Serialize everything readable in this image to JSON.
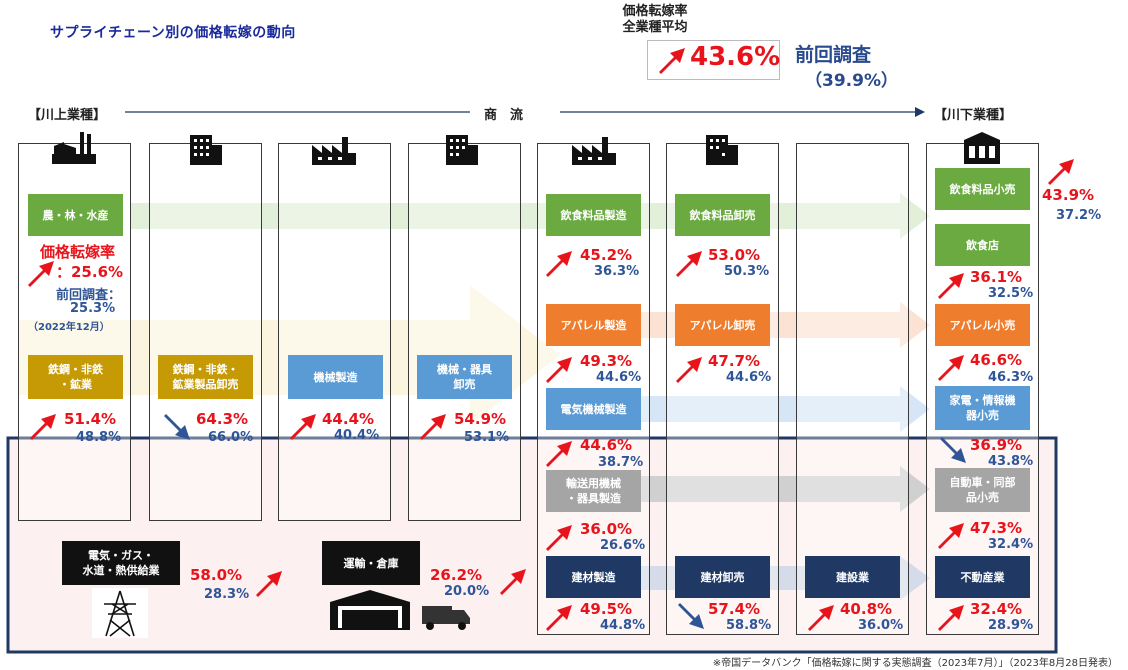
{
  "title": "サプライチェーン別の価格転嫁の動向",
  "header": {
    "label_line1": "価格転嫁率",
    "label_line2": "全業種平均",
    "value": "43.6%",
    "prev_label": "前回調査",
    "prev_value": "（39.9%）"
  },
  "flow": {
    "upstream": "【川上業種】",
    "middle": "商　流",
    "downstream": "【川下業種】"
  },
  "agri": {
    "name": "農・林・水産",
    "rate_label": "価格転嫁率",
    "rate": "：25.6%",
    "prev_label": "前回調査：",
    "prev": "25.3%",
    "prev_date": "（2022年12月）"
  },
  "columns": {
    "c1_box": "鉄鋼・非鉄\n・鉱業",
    "c1_cur": "51.4%",
    "c1_prev": "48.8%",
    "c2_box": "鉄鋼・非鉄・\n鉱業製品卸売",
    "c2_cur": "64.3%",
    "c2_prev": "66.0%",
    "c3_box": "機械製造",
    "c3_cur": "44.4%",
    "c3_prev": "40.4%",
    "c4_box": "機械・器具\n卸売",
    "c4_cur": "54.9%",
    "c4_prev": "53.1%"
  },
  "mfg": {
    "food": "飲食料品製造",
    "food_cur": "45.2%",
    "food_prev": "36.3%",
    "apparel": "アパレル製造",
    "apparel_cur": "49.3%",
    "apparel_prev": "44.6%",
    "elec": "電気機械製造",
    "elec_cur": "44.6%",
    "elec_prev": "38.7%",
    "transport": "輸送用機械\n・器具製造",
    "transport_cur": "36.0%",
    "transport_prev": "26.6%",
    "material": "建材製造",
    "material_cur": "49.5%",
    "material_prev": "44.8%"
  },
  "wholesale": {
    "food": "飲食料品卸売",
    "food_cur": "53.0%",
    "food_prev": "50.3%",
    "apparel": "アパレル卸売",
    "apparel_cur": "47.7%",
    "apparel_prev": "44.6%",
    "material": "建材卸売",
    "material_cur": "57.4%",
    "material_prev": "58.8%"
  },
  "construction": {
    "name": "建設業",
    "cur": "40.8%",
    "prev": "36.0%"
  },
  "retail": {
    "food": "飲食料品小売",
    "food_cur": "43.9%",
    "food_prev": "37.2%",
    "restaurant": "飲食店",
    "restaurant_cur": "36.1%",
    "restaurant_prev": "32.5%",
    "apparel": "アパレル小売",
    "apparel_cur": "46.6%",
    "apparel_prev": "46.3%",
    "elec": "家電・情報機\n器小売",
    "elec_cur": "36.9%",
    "elec_prev": "43.8%",
    "auto": "自動車・同部\n品小売",
    "auto_cur": "47.3%",
    "auto_prev": "32.4%",
    "realestate": "不動産業",
    "realestate_cur": "32.4%",
    "realestate_prev": "28.9%"
  },
  "infra": {
    "energy": "電気・ガス・\n水道・熱供給業",
    "energy_cur": "58.0%",
    "energy_prev": "28.3%",
    "logistics": "運輸・倉庫",
    "logistics_cur": "26.2%",
    "logistics_prev": "20.0%"
  },
  "footnote": "※帝国データバンク「価格転嫁に関する実態調査（2023年7月）」（2023年8月28日発表）",
  "colors": {
    "up_arrow": "#e8141b",
    "down_arrow": "#2f5597",
    "agri_green": "#6aaa40",
    "apparel_orange": "#ee7d2e",
    "elec_blue": "#5b9bd5",
    "navy": "#1f3864"
  }
}
